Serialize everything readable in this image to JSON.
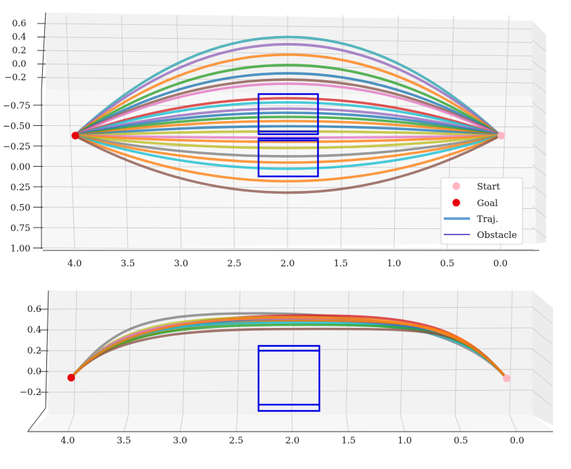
{
  "chart_data": [
    {
      "type": "line",
      "view": "3d-top",
      "x_ticks": [
        "4.0",
        "3.5",
        "3.0",
        "2.5",
        "2.0",
        "1.5",
        "1.0",
        "0.5",
        "0.0"
      ],
      "y_ticks": [
        "−0.75",
        "−0.50",
        "−0.25",
        "0.00",
        "0.25",
        "0.50",
        "0.75",
        "1.00"
      ],
      "z_ticks": [
        "0.6",
        "0.4",
        "0.2",
        "0.0",
        "−0.2"
      ],
      "grid": true,
      "legend": {
        "placement": "bottom-right",
        "entries": [
          {
            "label": "Start",
            "marker": "dot",
            "color": "#ffb6c1"
          },
          {
            "label": "Goal",
            "marker": "dot",
            "color": "#e8000b"
          },
          {
            "label": "Traj.",
            "marker": "line",
            "color": "#5a9bd4"
          },
          {
            "label": "Obstacle",
            "marker": "line",
            "color": "#6a5acd"
          }
        ]
      },
      "start": {
        "x": 0.0,
        "y": 0.0
      },
      "goal": {
        "x": 4.0,
        "y": 0.0
      },
      "obstacle_color": "#0000e6",
      "trajectories": [
        {
          "color": "#2ca4b0",
          "peak": 0.95
        },
        {
          "color": "#9467bd",
          "peak": 0.88
        },
        {
          "color": "#ff7f0e",
          "peak": 0.78
        },
        {
          "color": "#2ca02c",
          "peak": 0.68
        },
        {
          "color": "#1f77b4",
          "peak": 0.6
        },
        {
          "color": "#8c564b",
          "peak": 0.54
        },
        {
          "color": "#e377c2",
          "peak": 0.5
        },
        {
          "color": "#d62728",
          "peak": 0.36
        },
        {
          "color": "#17becf",
          "peak": 0.32
        },
        {
          "color": "#9467bd",
          "peak": 0.26
        },
        {
          "color": "#1f77b4",
          "peak": 0.22
        },
        {
          "color": "#2ca02c",
          "peak": 0.18
        },
        {
          "color": "#ff7f0e",
          "peak": 0.14
        },
        {
          "color": "#1f77b4",
          "peak": 0.09
        },
        {
          "color": "#bcbd22",
          "peak": 0.04
        },
        {
          "color": "#e377c2",
          "peak": -0.02
        },
        {
          "color": "#ff7f0e",
          "peak": -0.06
        },
        {
          "color": "#bcbd22",
          "peak": -0.12
        },
        {
          "color": "#7f7f7f",
          "peak": -0.2
        },
        {
          "color": "#ff7f0e",
          "peak": -0.26
        },
        {
          "color": "#17becf",
          "peak": -0.32
        },
        {
          "color": "#ff7f0e",
          "peak": -0.44
        },
        {
          "color": "#8c564b",
          "peak": -0.55
        }
      ]
    },
    {
      "type": "line",
      "view": "3d-front",
      "x_ticks": [
        "4.0",
        "3.5",
        "3.0",
        "2.5",
        "2.0",
        "1.5",
        "1.0",
        "0.5",
        "0.0"
      ],
      "z_ticks": [
        "0.6",
        "0.4",
        "0.2",
        "0.0",
        "−0.2"
      ],
      "grid": true,
      "start": {
        "x": 0.0,
        "z": 0.0
      },
      "goal": {
        "x": 4.0,
        "z": 0.0
      },
      "obstacle_color": "#0000e6",
      "trajectories": [
        {
          "color": "#7f7f7f",
          "peak": 0.62,
          "skew": 0.42
        },
        {
          "color": "#d62728",
          "peak": 0.6,
          "skew": 0.55
        },
        {
          "color": "#bcbd22",
          "peak": 0.58,
          "skew": 0.47
        },
        {
          "color": "#9467bd",
          "peak": 0.57,
          "skew": 0.5
        },
        {
          "color": "#e377c2",
          "peak": 0.56,
          "skew": 0.48
        },
        {
          "color": "#1f77b4",
          "peak": 0.55,
          "skew": 0.52
        },
        {
          "color": "#ff7f0e",
          "peak": 0.55,
          "skew": 0.57
        },
        {
          "color": "#17becf",
          "peak": 0.53,
          "skew": 0.5
        },
        {
          "color": "#2ca02c",
          "peak": 0.51,
          "skew": 0.54
        },
        {
          "color": "#8c564b",
          "peak": 0.47,
          "skew": 0.58
        },
        {
          "color": "#ff7f0e",
          "peak": 0.58,
          "skew": 0.53
        }
      ]
    }
  ]
}
